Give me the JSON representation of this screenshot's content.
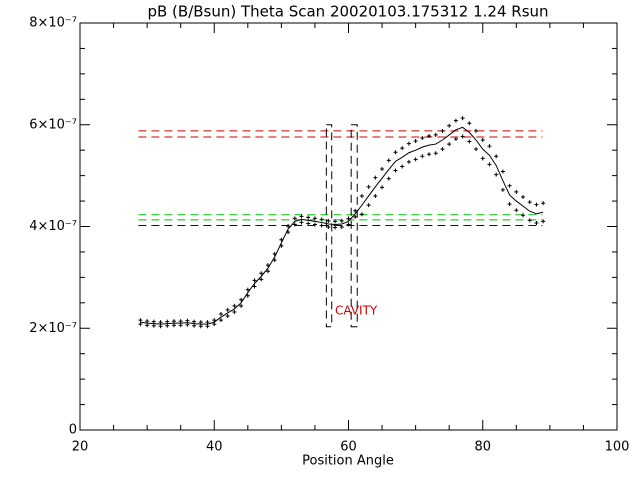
{
  "chart_data": {
    "type": "scatter",
    "title": "pB (B/Bsun) Theta Scan 20020103.175312 1.24 Rsun",
    "x_label": "Position Angle",
    "xlim": [
      20,
      100
    ],
    "xticks": [
      20,
      40,
      60,
      80,
      100
    ],
    "xminorticks": [
      25,
      30,
      35,
      45,
      50,
      55,
      65,
      70,
      75,
      85,
      90,
      95
    ],
    "ylim": [
      0,
      8e-07
    ],
    "yticks": [
      0,
      {
        "value": 2e-07,
        "label": "2×10⁻⁷"
      },
      {
        "value": 4e-07,
        "label": "4×10⁻⁷"
      },
      {
        "value": 6e-07,
        "label": "6×10⁻⁷"
      },
      {
        "value": 8e-07,
        "label": "8×10⁻⁷"
      }
    ],
    "yminorticks": [
      5e-08,
      1e-07,
      1.5e-07,
      2.5e-07,
      3e-07,
      3.5e-07,
      4.5e-07,
      5e-07,
      5.5e-07,
      6.5e-07,
      7e-07,
      7.5e-07
    ],
    "x": [
      29,
      30,
      31,
      32,
      33,
      34,
      35,
      36,
      37,
      38,
      39,
      40,
      41,
      42,
      43,
      44,
      45,
      46,
      47,
      48,
      49,
      50,
      51,
      52,
      53,
      54,
      55,
      56,
      57,
      58,
      59,
      60,
      61,
      62,
      63,
      64,
      65,
      66,
      67,
      68,
      69,
      70,
      71,
      72,
      73,
      74,
      75,
      76,
      77,
      78,
      79,
      80,
      81,
      82,
      83,
      84,
      85,
      86,
      87,
      88,
      89
    ],
    "series": [
      {
        "style": "line",
        "color": "#000000",
        "values": [
          2.12e-07,
          2.1e-07,
          2.09e-07,
          2.08e-07,
          2.09e-07,
          2.1e-07,
          2.1e-07,
          2.11e-07,
          2.09e-07,
          2.08e-07,
          2.08e-07,
          2.12e-07,
          2.22e-07,
          2.3e-07,
          2.38e-07,
          2.5e-07,
          2.7e-07,
          2.88e-07,
          3.02e-07,
          3.18e-07,
          3.4e-07,
          3.68e-07,
          3.95e-07,
          4.1e-07,
          4.14e-07,
          4.12e-07,
          4.1e-07,
          4.08e-07,
          4.05e-07,
          4.04e-07,
          4.05e-07,
          4.1e-07,
          4.25e-07,
          4.42e-07,
          4.6e-07,
          4.78e-07,
          4.95e-07,
          5.12e-07,
          5.28e-07,
          5.36e-07,
          5.45e-07,
          5.5e-07,
          5.56e-07,
          5.6e-07,
          5.62e-07,
          5.7e-07,
          5.8e-07,
          5.9e-07,
          5.95e-07,
          5.85e-07,
          5.7e-07,
          5.52e-07,
          5.4e-07,
          5.2e-07,
          4.9e-07,
          4.62e-07,
          4.5e-07,
          4.4e-07,
          4.3e-07,
          4.25e-07,
          4.28e-07
        ]
      },
      {
        "style": "points",
        "color": "#000000",
        "values": [
          2.16e-07,
          2.14e-07,
          2.13e-07,
          2.12e-07,
          2.13e-07,
          2.14e-07,
          2.14e-07,
          2.15e-07,
          2.13e-07,
          2.12e-07,
          2.12e-07,
          2.16e-07,
          2.28e-07,
          2.36e-07,
          2.44e-07,
          2.56e-07,
          2.76e-07,
          2.94e-07,
          3.08e-07,
          3.24e-07,
          3.46e-07,
          3.74e-07,
          4.01e-07,
          4.16e-07,
          4.2e-07,
          4.18e-07,
          4.16e-07,
          4.14e-07,
          4.11e-07,
          4.1e-07,
          4.11e-07,
          4.16e-07,
          4.31e-07,
          4.6e-07,
          4.78e-07,
          4.96e-07,
          5.13e-07,
          5.3e-07,
          5.46e-07,
          5.54e-07,
          5.63e-07,
          5.68e-07,
          5.74e-07,
          5.78e-07,
          5.8e-07,
          5.88e-07,
          5.98e-07,
          6.08e-07,
          6.13e-07,
          6.03e-07,
          5.88e-07,
          5.7e-07,
          5.58e-07,
          5.38e-07,
          5.08e-07,
          4.8e-07,
          4.68e-07,
          4.58e-07,
          4.48e-07,
          4.43e-07,
          4.46e-07
        ]
      },
      {
        "style": "points",
        "color": "#000000",
        "values": [
          2.08e-07,
          2.06e-07,
          2.05e-07,
          2.04e-07,
          2.05e-07,
          2.06e-07,
          2.06e-07,
          2.07e-07,
          2.05e-07,
          2.04e-07,
          2.04e-07,
          2.08e-07,
          2.16e-07,
          2.24e-07,
          2.32e-07,
          2.44e-07,
          2.64e-07,
          2.82e-07,
          2.96e-07,
          3.12e-07,
          3.34e-07,
          3.62e-07,
          3.89e-07,
          4.04e-07,
          4.08e-07,
          4.06e-07,
          4.04e-07,
          4.02e-07,
          3.99e-07,
          3.98e-07,
          3.99e-07,
          4.04e-07,
          4.19e-07,
          4.24e-07,
          4.42e-07,
          4.6e-07,
          4.77e-07,
          4.94e-07,
          5.1e-07,
          5.18e-07,
          5.27e-07,
          5.32e-07,
          5.38e-07,
          5.42e-07,
          5.44e-07,
          5.52e-07,
          5.62e-07,
          5.72e-07,
          5.77e-07,
          5.67e-07,
          5.52e-07,
          5.34e-07,
          5.22e-07,
          5.02e-07,
          4.72e-07,
          4.44e-07,
          4.32e-07,
          4.22e-07,
          4.12e-07,
          4.07e-07,
          4.1e-07
        ]
      }
    ],
    "reference_span": [
      28.7,
      88.9
    ],
    "reference_lines": [
      {
        "value": 5.88e-07,
        "color": "#d00000"
      },
      {
        "value": 5.76e-07,
        "color": "#d00000"
      },
      {
        "value": 4.23e-07,
        "color": "#00c000"
      },
      {
        "value": 4.13e-07,
        "color": "#00c000"
      },
      {
        "value": 4.02e-07,
        "color": "#0000c0"
      }
    ],
    "regions": [
      {
        "x": [
          56.7,
          57.5
        ],
        "y": [
          2.03e-07,
          6e-07
        ]
      },
      {
        "x": [
          60.4,
          61.3
        ],
        "y": [
          2.03e-07,
          6e-07
        ]
      }
    ],
    "annotation": {
      "text": "CAVITY",
      "color": "#d00000"
    }
  }
}
